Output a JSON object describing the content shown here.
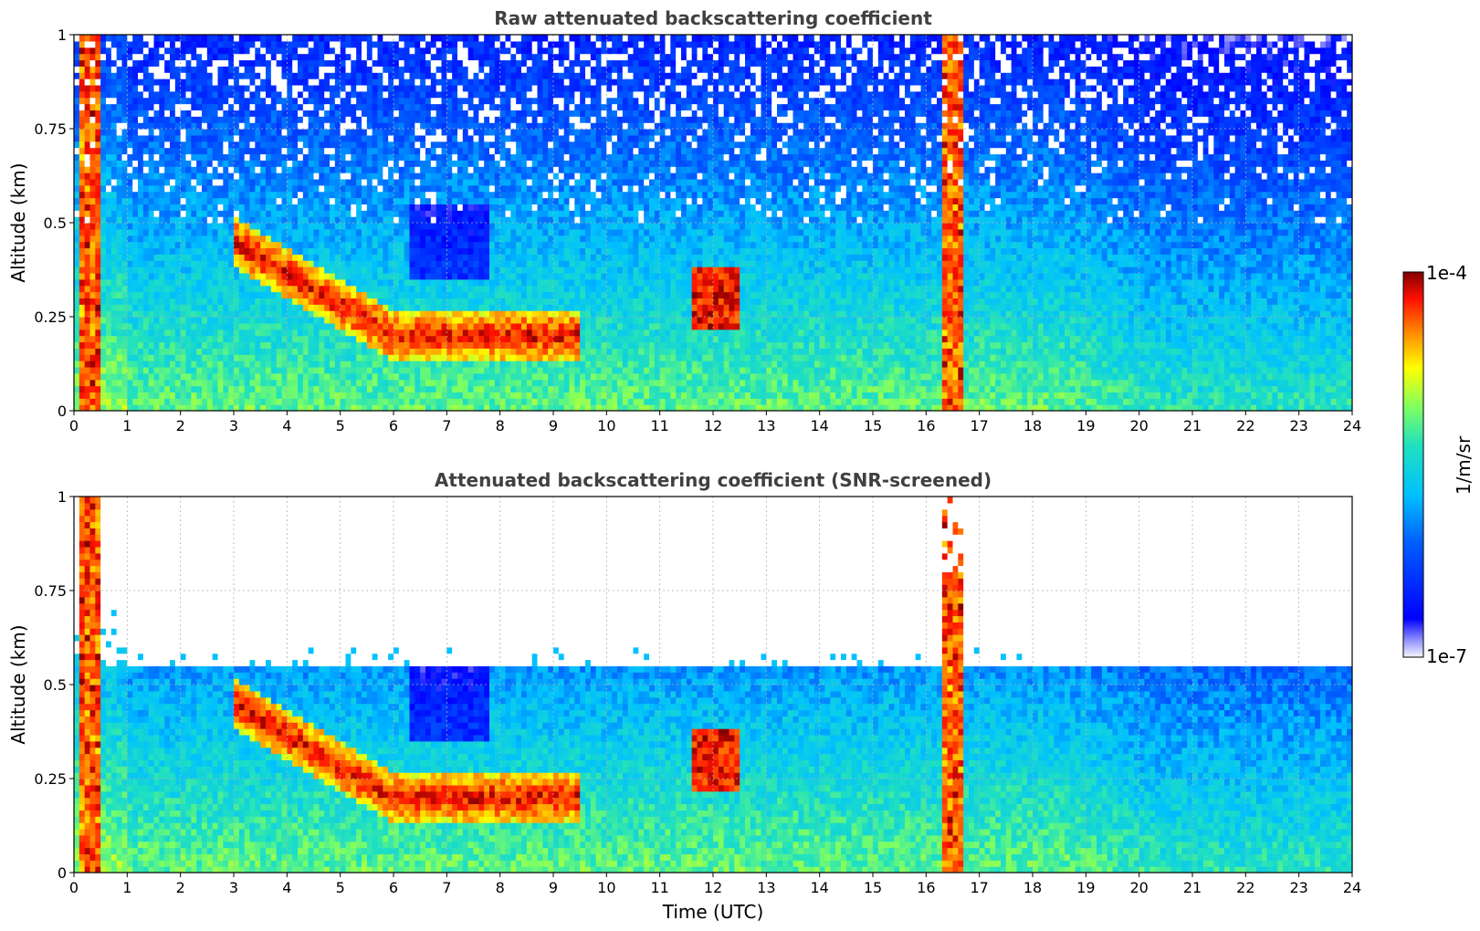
{
  "chart_data": [
    {
      "type": "heatmap",
      "title": "Raw attenuated backscattering coefficient",
      "xlabel": "",
      "ylabel": "Altitude (km)",
      "xlim": [
        0,
        24
      ],
      "ylim": [
        0,
        1
      ],
      "x_ticks": [
        "0",
        "1",
        "2",
        "3",
        "4",
        "5",
        "6",
        "7",
        "8",
        "9",
        "10",
        "11",
        "12",
        "13",
        "14",
        "15",
        "16",
        "17",
        "18",
        "19",
        "20",
        "21",
        "22",
        "23",
        "24"
      ],
      "y_ticks": [
        "0",
        "0.25",
        "0.5",
        "0.75",
        "1"
      ],
      "grid": true,
      "screened": false,
      "layers": [
        {
          "kind": "boundary_layer_cloud",
          "t_start": 3.0,
          "t_end": 9.5,
          "base_start_km": 0.45,
          "base_end_km": 0.2
        },
        {
          "kind": "cloud_patch",
          "t_start": 11.6,
          "t_end": 12.5,
          "alt_km": 0.3
        },
        {
          "kind": "precipitation_columns",
          "t_start": 16.3,
          "t_end": 16.7,
          "alt_km": [
            0,
            1
          ]
        }
      ]
    },
    {
      "type": "heatmap",
      "title": "Attenuated backscattering coefficient (SNR-screened)",
      "xlabel": "Time (UTC)",
      "ylabel": "Altitude (km)",
      "xlim": [
        0,
        24
      ],
      "ylim": [
        0,
        1
      ],
      "x_ticks": [
        "0",
        "1",
        "2",
        "3",
        "4",
        "5",
        "6",
        "7",
        "8",
        "9",
        "10",
        "11",
        "12",
        "13",
        "14",
        "15",
        "16",
        "17",
        "18",
        "19",
        "20",
        "21",
        "22",
        "23",
        "24"
      ],
      "y_ticks": [
        "0",
        "0.25",
        "0.5",
        "0.75",
        "1"
      ],
      "grid": true,
      "screened": true
    }
  ],
  "colorbar": {
    "label": "1/m/sr",
    "max_label": "1e-4",
    "min_label": "1e-7",
    "colormap": "jet",
    "scale": "log",
    "range": [
      1e-07,
      0.0001
    ]
  }
}
